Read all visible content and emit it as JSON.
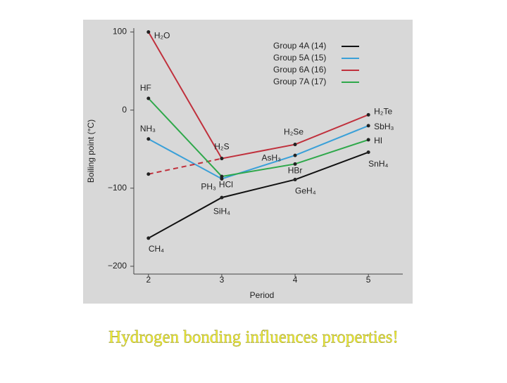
{
  "chart_data": {
    "type": "line",
    "caption": "Hydrogen bonding influences properties!",
    "xlabel": "Period",
    "ylabel": "Boiling point (°C)",
    "x": [
      2,
      3,
      4,
      5
    ],
    "xlim": [
      1.8,
      5.45
    ],
    "xticks": [
      2,
      3,
      4,
      5
    ],
    "ylim": [
      -210,
      105
    ],
    "yticks": [
      100,
      0,
      {
        "value": -100,
        "label": "−100"
      },
      {
        "value": -200,
        "label": "−200"
      }
    ],
    "series": [
      {
        "name": "Group 4A (14)",
        "color": "#111111",
        "values": [
          -164,
          -112,
          -89,
          -54
        ],
        "point_labels": [
          "CH₄",
          "SiH₄",
          "GeH₄",
          "SnH₄"
        ]
      },
      {
        "name": "Group 5A (15)",
        "color": "#3aa0d8",
        "values": [
          -37,
          -88,
          -58,
          -20
        ],
        "point_labels": [
          "NH₃",
          "PH₃",
          "AsH₃",
          "SbH₃"
        ]
      },
      {
        "name": "Group 6A (16)",
        "color": "#c0303c",
        "values": [
          100,
          -62,
          -44,
          -6
        ],
        "extrapolated": -82,
        "point_labels": [
          "H₂O",
          "H₂S",
          "H₂Se",
          "H₂Te"
        ]
      },
      {
        "name": "Group 7A (17)",
        "color": "#2ea84a",
        "values": [
          15,
          -85,
          -69,
          -38
        ],
        "point_labels": [
          "HF",
          "HCl",
          "HBr",
          "HI"
        ]
      }
    ]
  }
}
